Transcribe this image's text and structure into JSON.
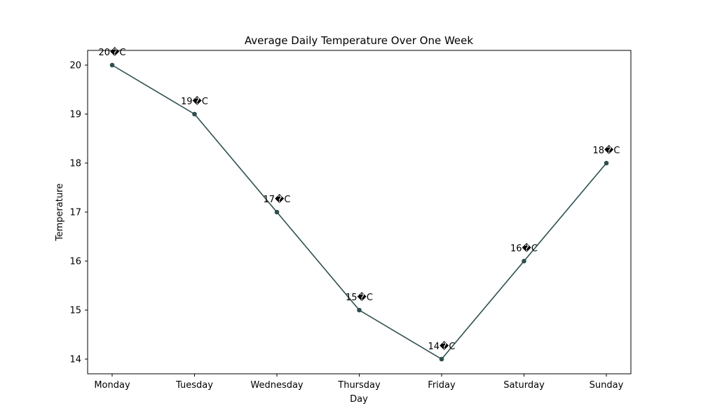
{
  "chart_data": {
    "type": "line",
    "title": "Average Daily Temperature Over One Week",
    "xlabel": "Day",
    "ylabel": "Temperature",
    "categories": [
      "Monday",
      "Tuesday",
      "Wednesday",
      "Thursday",
      "Friday",
      "Saturday",
      "Sunday"
    ],
    "series": [
      {
        "values": [
          20,
          19,
          17,
          15,
          14,
          16,
          18
        ],
        "color": "#2f4f4f"
      }
    ],
    "data_labels": [
      "20�C",
      "19�C",
      "17�C",
      "15�C",
      "14�C",
      "16�C",
      "18�C"
    ],
    "yticks": [
      14,
      15,
      16,
      17,
      18,
      19,
      20
    ],
    "ylim": [
      13.7,
      20.3
    ],
    "grid": false,
    "legend": "none"
  }
}
